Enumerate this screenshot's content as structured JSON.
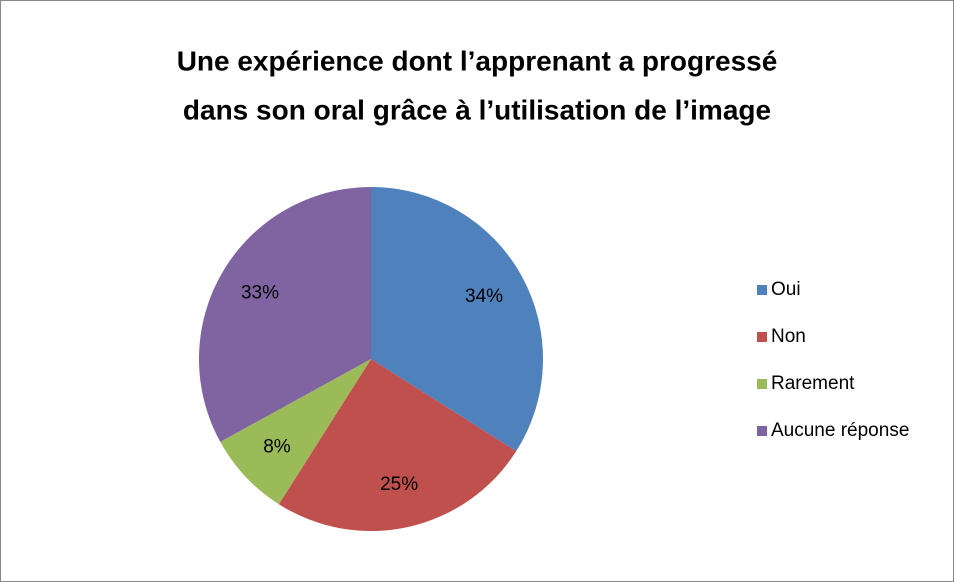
{
  "chart_data": {
    "type": "pie",
    "title": [
      "Une expérience dont l’apprenant a progressé",
      "dans son oral grâce à l’utilisation de l’image"
    ],
    "categories": [
      "Oui",
      "Non",
      "Rarement",
      "Aucune réponse"
    ],
    "values": [
      34,
      25,
      8,
      33
    ],
    "value_labels": [
      "34%",
      "25%",
      "8%",
      "33%"
    ],
    "colors": [
      "#4f81bd",
      "#c0504d",
      "#9bbb59",
      "#8064a2"
    ],
    "legend": "right"
  }
}
